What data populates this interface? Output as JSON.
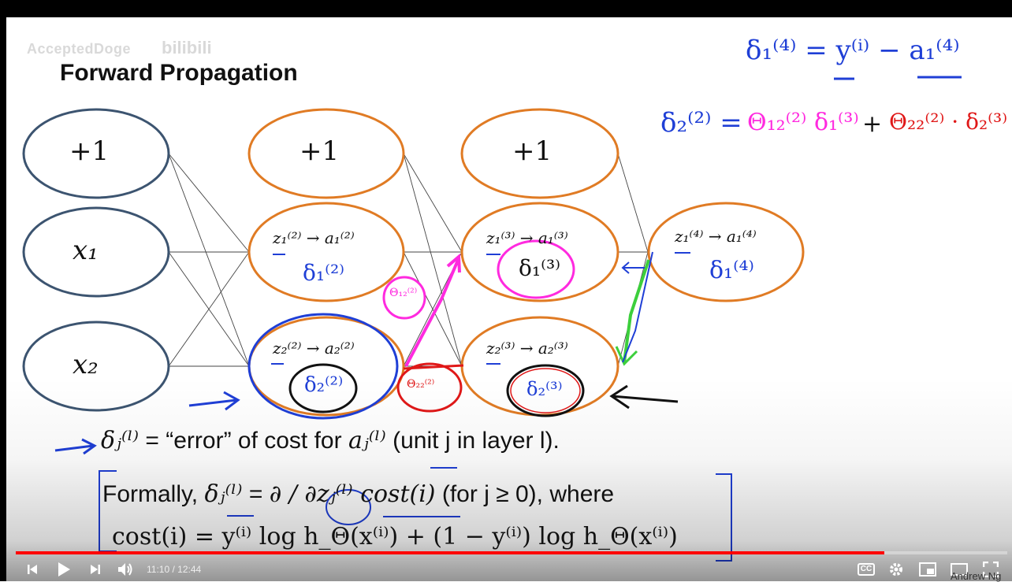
{
  "watermark": {
    "channel": "AcceptedDoge",
    "site": "bilibili"
  },
  "slide": {
    "title": "Forward Propagation",
    "nodes": {
      "bias1": "+1",
      "x1": "x₁",
      "x2": "x₂",
      "bias2": "+1",
      "bias3": "+1",
      "l2u1": "z₁⁽²⁾ → a₁⁽²⁾",
      "l2u2": "z₂⁽²⁾ → a₂⁽²⁾",
      "l3u1": "z₁⁽³⁾ → a₁⁽³⁾",
      "l3u2": "z₂⁽³⁾ → a₂⁽³⁾",
      "l4u1": "z₁⁽⁴⁾ → a₁⁽⁴⁾"
    },
    "annotations": {
      "delta_l2u1": "δ₁⁽²⁾",
      "delta_l2u2": "δ₂⁽²⁾",
      "delta_l3u1": "δ₁⁽³⁾",
      "delta_l3u2": "δ₂⁽³⁾",
      "delta_l4u1": "δ₁⁽⁴⁾",
      "theta12": "Θ₁₂⁽²⁾",
      "theta22": "Θ₂₂⁽²⁾",
      "eq_top": "δ₁⁽⁴⁾ = y⁽ⁱ⁾ − a₁⁽⁴⁾",
      "eq_second_lhs": "δ₂⁽²⁾ =",
      "eq_second_term1": "Θ₁₂⁽²⁾ δ₁⁽³⁾",
      "eq_second_plus": "+",
      "eq_second_term2": "Θ₂₂⁽²⁾ · δ₂⁽³⁾"
    },
    "line1": {
      "delta": "δⱼ⁽ˡ⁾",
      "eq": "=",
      "text": "“error” of cost for",
      "a": "aⱼ⁽ˡ⁾",
      "tail": "(unit j in layer l)."
    },
    "line2": {
      "formally": "Formally,",
      "delta": "δⱼ⁽ˡ⁾",
      "eq": "=",
      "partial": "∂ / ∂zⱼ⁽ˡ⁾ cost(i)",
      "tail": "(for j ≥ 0), where"
    },
    "line3": {
      "text": "cost(i) = y⁽ⁱ⁾ log h_Θ(x⁽ⁱ⁾) + (1 − y⁽ⁱ⁾) log h_Θ(x⁽ⁱ⁾)"
    },
    "credit": "Andrew Ng"
  },
  "player": {
    "current_time": "11:10",
    "separator": " / ",
    "duration": "12:44",
    "progress": 0.876,
    "accent": "#ff0000",
    "cc_label": "CC"
  }
}
